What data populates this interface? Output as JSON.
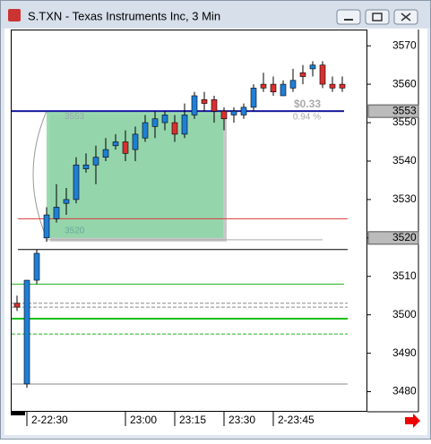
{
  "chart_data": {
    "type": "candlestick",
    "title": "S.TXN - Texas Instruments Inc, 3 Min",
    "categories": [
      null,
      "2-22:30",
      null,
      null,
      null,
      null,
      null,
      null,
      null,
      null,
      null,
      "23:00",
      null,
      null,
      null,
      null,
      "23:15",
      null,
      null,
      null,
      null,
      "23:30",
      null,
      null,
      null,
      null,
      "2-23:45",
      null,
      null,
      null,
      null,
      null,
      null,
      null
    ],
    "open": [
      3503,
      3482,
      3509,
      3520,
      3525,
      3529,
      3530,
      3538,
      3539,
      3541,
      3544,
      3545,
      3543,
      3546,
      3549,
      3550,
      3550,
      3547,
      3552,
      3556,
      3556,
      3553,
      3552,
      3552,
      3554,
      3560,
      3560,
      3557,
      3559,
      3563,
      3564,
      3565,
      3560,
      3560
    ],
    "high": [
      3505,
      3509,
      3517,
      3528,
      3534,
      3533,
      3541,
      3542,
      3544,
      3546,
      3547,
      3548,
      3549,
      3552,
      3553,
      3553,
      3552,
      3555,
      3558,
      3558,
      3557,
      3554,
      3554,
      3555,
      3560,
      3563,
      3562,
      3561,
      3564,
      3565,
      3566,
      3566,
      3562,
      3562
    ],
    "low": [
      3501,
      3481,
      3508,
      3519,
      3524,
      3526,
      3529,
      3537,
      3534,
      3540,
      3543,
      3540,
      3540,
      3545,
      3546,
      3548,
      3545,
      3546,
      3551,
      3553,
      3550,
      3548,
      3550,
      3551,
      3553,
      3558,
      3557,
      3557,
      3558,
      3560,
      3562,
      3559,
      3558,
      3558
    ],
    "close": [
      3502,
      3509,
      3516,
      3526,
      3528,
      3530,
      3539,
      3539,
      3541,
      3543,
      3545,
      3542,
      3547,
      3550,
      3551,
      3552,
      3547,
      3552,
      3557,
      3555,
      3553,
      3551,
      3553,
      3554,
      3559,
      3559,
      3558,
      3560,
      3561,
      3562,
      3565,
      3560,
      3559,
      3559
    ],
    "up_color": "#1f7fd6",
    "down_color": "#d93030",
    "ylim": [
      3475,
      3574
    ],
    "yticks": [
      3480,
      3490,
      3500,
      3510,
      3520,
      3530,
      3540,
      3550,
      3560,
      3570
    ],
    "levels": [
      {
        "value": 3553,
        "color": "#1a1aa0"
      },
      {
        "value": 3525,
        "color": "#d83a3a"
      },
      {
        "value": 3517,
        "color": "#000000"
      },
      {
        "value": 3508,
        "color": "#22b022"
      },
      {
        "value": 3503,
        "color": "#888888"
      },
      {
        "value": 3502,
        "color": "#888888"
      },
      {
        "value": 3499,
        "color": "#18c018"
      },
      {
        "value": 3495,
        "color": "#22b022"
      },
      {
        "value": 3482,
        "color": "#888888"
      }
    ],
    "box": {
      "top": 3553,
      "bottom": 3520,
      "color": "#8fd6a8"
    },
    "annotations": [
      "$0.33",
      "0.94 %"
    ],
    "price_markers": [
      3553,
      3520
    ]
  }
}
